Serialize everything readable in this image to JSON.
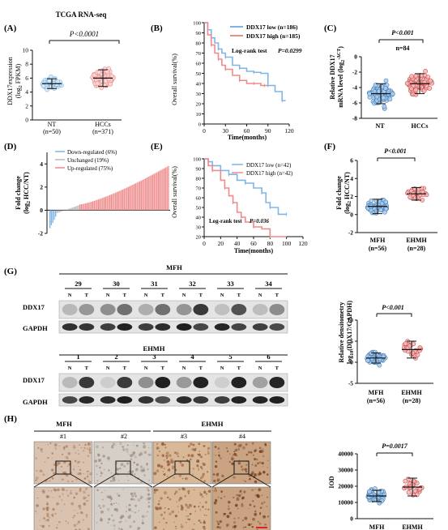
{
  "panel_labels": [
    "(A)",
    "(B)",
    "(C)",
    "(D)",
    "(E)",
    "(F)",
    "(G)",
    "(H)"
  ],
  "colors": {
    "nt_blue": "#7fb5e6",
    "nt_fill": "#a9cdee",
    "hcc_red": "#ef8a8a",
    "hcc_fill": "#f6b8b8",
    "gray": "#b9b9b9",
    "blot_bg": "#e4e4e4",
    "band": "#1b1b1b"
  },
  "panel_a": {
    "title": "TCGA RNA-seq",
    "ylabel_line1": "DDX17expression",
    "ylabel_line2": "(log",
    "ylabel_sub": "2",
    "ylabel_end": " FPKM)",
    "pvalue": "P<0.0001",
    "groups": [
      {
        "name": "NT",
        "n": "(n=50)"
      },
      {
        "name": "HCCs",
        "n": "(n=371)"
      }
    ]
  },
  "panel_b": {
    "ylabel": "Overall survival(%)",
    "xlabel": "Time(months)",
    "legend": [
      "DDX17 low  (n=186)",
      "DDX17 high (n=185)"
    ],
    "logrank": "Log-rank test",
    "pvalue": "P=0.0299"
  },
  "panel_c": {
    "ylabel_line1": "Relative DDX17",
    "ylabel_line2": "mRNA level (log",
    "ylabel_sup": "-ΔCT",
    "pvalue": "P<0.001",
    "n_label": "n=84",
    "groups": [
      "NT",
      "HCCs"
    ]
  },
  "panel_d": {
    "ylabel_line1": "Fold change",
    "ylabel_line2": "(log",
    "ylabel_end": " HCC/NT)",
    "legend": [
      "Down-regulated (6%)",
      "Unchanged (19%)",
      "Up-regulated (75%)"
    ]
  },
  "panel_e": {
    "ylabel": "Overall survival(%)",
    "xlabel": "Time(months)",
    "legend": [
      "DDX17 low   (n=42)",
      "DDX17 high  (n=42)"
    ],
    "logrank": "Log-rank test",
    "pvalue": "P=0.036"
  },
  "panel_f": {
    "ylabel_line1": "Fold change",
    "ylabel_line2": "(log",
    "ylabel_end": " HCC/NT)",
    "pvalue": "P<0.001",
    "groups": [
      {
        "name": "MFH",
        "n": "(n=56)"
      },
      {
        "name": "EHMH",
        "n": "(n=28)"
      }
    ]
  },
  "panel_g": {
    "mfh_title": "MFH",
    "ehmh_title": "EHMH",
    "mfh_samples": [
      "29",
      "30",
      "31",
      "32",
      "33",
      "34"
    ],
    "ehmh_samples": [
      "1",
      "2",
      "3",
      "4",
      "5",
      "6"
    ],
    "lane_n": "N",
    "lane_t": "T",
    "row_labels": [
      "DDX17",
      "GAPDH"
    ],
    "ylabel_line1": "Relative densitometry",
    "ylabel_line2": "log",
    "ylabel_end": "(DDX17/GAPDH)",
    "pvalue": "P<0.001",
    "groups": [
      {
        "name": "MFH",
        "n": "(n=56)"
      },
      {
        "name": "EHMH",
        "n": "(n=28)"
      }
    ]
  },
  "panel_h": {
    "mfh_title": "MFH",
    "ehmh_title": "EHMH",
    "image_labels": [
      "#1",
      "#2",
      "#3",
      "#4"
    ],
    "ylabel": "IOD",
    "pvalue": "P=0.0017",
    "groups": [
      "MFH",
      "EHMH"
    ]
  },
  "chart_data": [
    {
      "type": "scatter",
      "panel": "A",
      "title": "TCGA RNA-seq",
      "categories": [
        "NT",
        "HCCs"
      ],
      "series": [
        {
          "name": "NT",
          "mean": 5.2,
          "sd": 0.7,
          "n": 50
        },
        {
          "name": "HCCs",
          "mean": 6.0,
          "sd": 1.2,
          "n": 371
        }
      ],
      "ylim": [
        0,
        10
      ],
      "yticks": [
        0,
        2,
        4,
        6,
        8,
        10
      ]
    },
    {
      "type": "line",
      "panel": "B",
      "xlabel": "Time(months)",
      "ylabel": "Overall survival(%)",
      "xlim": [
        0,
        120
      ],
      "ylim": [
        0,
        100
      ],
      "xticks": [
        0,
        30,
        60,
        90,
        120
      ],
      "yticks": [
        0,
        10,
        20,
        30,
        40,
        50,
        60,
        70,
        80,
        90,
        100
      ],
      "series": [
        {
          "name": "DDX17 low  (n=186)",
          "x": [
            0,
            5,
            10,
            15,
            20,
            25,
            30,
            40,
            50,
            60,
            70,
            80,
            90,
            100,
            110,
            115
          ],
          "y": [
            100,
            93,
            85,
            80,
            74,
            70,
            66,
            58,
            55,
            52,
            51,
            50,
            38,
            32,
            23,
            23
          ]
        },
        {
          "name": "DDX17 high (n=185)",
          "x": [
            0,
            5,
            10,
            15,
            20,
            25,
            30,
            40,
            50,
            60,
            70,
            80,
            85,
            90
          ],
          "y": [
            100,
            88,
            78,
            70,
            64,
            58,
            54,
            48,
            43,
            40,
            40,
            38,
            38,
            38
          ]
        }
      ]
    },
    {
      "type": "scatter",
      "panel": "C",
      "categories": [
        "NT",
        "HCCs"
      ],
      "series": [
        {
          "name": "NT",
          "mean": -4.8,
          "sd": 1.3,
          "n": 84
        },
        {
          "name": "HCCs",
          "mean": -3.5,
          "sd": 1.3,
          "n": 84
        }
      ],
      "ylim": [
        -8,
        0
      ],
      "yticks": [
        -8,
        -6,
        -4,
        -2,
        0
      ]
    },
    {
      "type": "bar",
      "panel": "D",
      "ylim": [
        -2,
        5
      ],
      "yticks": [
        -2,
        0,
        2,
        4
      ],
      "groups": [
        {
          "name": "Down-regulated (6%)",
          "count": 5
        },
        {
          "name": "Unchanged (19%)",
          "count": 16
        },
        {
          "name": "Up-regulated (75%)",
          "count": 63
        }
      ]
    },
    {
      "type": "line",
      "panel": "E",
      "xlabel": "Time(months)",
      "ylabel": "Overall survival(%)",
      "xlim": [
        0,
        120
      ],
      "ylim": [
        20,
        100
      ],
      "xticks": [
        0,
        20,
        40,
        60,
        80,
        100,
        120
      ],
      "yticks": [
        20,
        30,
        40,
        50,
        60,
        70,
        80,
        90,
        100
      ],
      "series": [
        {
          "name": "DDX17 low   (n=42)",
          "x": [
            0,
            5,
            10,
            20,
            30,
            40,
            50,
            60,
            70,
            75,
            80,
            90,
            100
          ],
          "y": [
            100,
            97,
            93,
            88,
            84,
            78,
            75,
            70,
            65,
            55,
            50,
            43,
            43
          ]
        },
        {
          "name": "DDX17 high  (n=42)",
          "x": [
            0,
            5,
            10,
            20,
            25,
            30,
            35,
            40,
            45,
            50,
            60,
            70,
            80,
            100
          ],
          "y": [
            100,
            93,
            88,
            78,
            70,
            62,
            55,
            45,
            40,
            35,
            30,
            28,
            20,
            20
          ]
        }
      ]
    },
    {
      "type": "scatter",
      "panel": "F",
      "categories": [
        "MFH",
        "EHMH"
      ],
      "series": [
        {
          "name": "MFH",
          "mean": 0.9,
          "sd": 0.8,
          "n": 56
        },
        {
          "name": "EHMH",
          "mean": 2.3,
          "sd": 0.7,
          "n": 28
        }
      ],
      "ylim": [
        -2,
        6
      ],
      "yticks": [
        -2,
        0,
        2,
        4,
        6
      ]
    },
    {
      "type": "scatter",
      "panel": "G",
      "categories": [
        "MFH",
        "EHMH"
      ],
      "series": [
        {
          "name": "MFH",
          "mean": 1.0,
          "sd": 1.2,
          "n": 56
        },
        {
          "name": "EHMH",
          "mean": 3.0,
          "sd": 2.0,
          "n": 28
        }
      ],
      "ylim": [
        -5,
        10
      ],
      "yticks": [
        -5,
        0,
        5,
        10
      ]
    },
    {
      "type": "scatter",
      "panel": "H",
      "categories": [
        "MFH",
        "EHMH"
      ],
      "series": [
        {
          "name": "MFH",
          "mean": 14000,
          "sd": 3500,
          "n": 56
        },
        {
          "name": "EHMH",
          "mean": 19500,
          "sd": 5500,
          "n": 28
        }
      ],
      "ylim": [
        0,
        40000
      ],
      "yticks": [
        0,
        10000,
        20000,
        30000,
        40000
      ]
    }
  ]
}
